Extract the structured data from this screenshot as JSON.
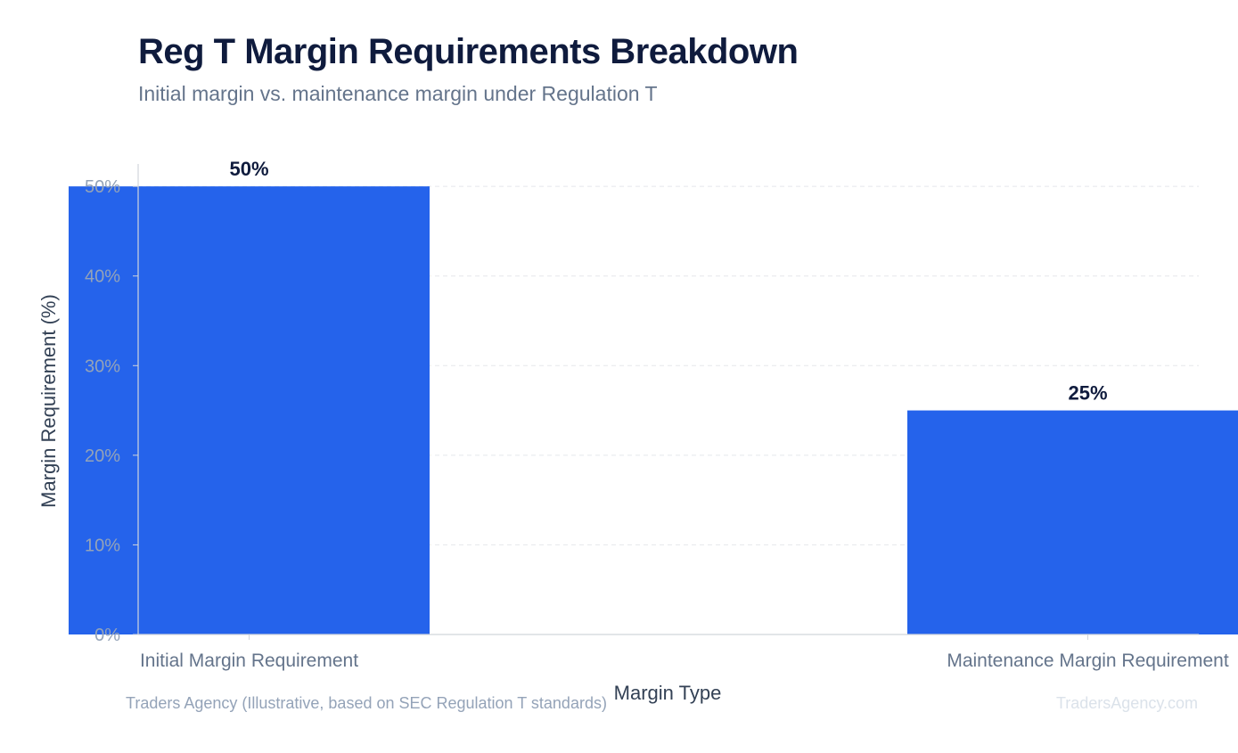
{
  "header": {
    "title": "Reg T Margin Requirements Breakdown",
    "subtitle": "Initial margin vs. maintenance margin under Regulation T"
  },
  "footer": {
    "source": "Traders Agency (Illustrative, based on SEC Regulation T standards)",
    "watermark": "TradersAgency.com"
  },
  "colors": {
    "bar": "#2563eb",
    "title": "#0f1b3d",
    "axis_text": "#94a3b8",
    "label_text": "#64748b"
  },
  "chart_data": {
    "type": "bar",
    "title": "Reg T Margin Requirements Breakdown",
    "subtitle": "Initial margin vs. maintenance margin under Regulation T",
    "categories": [
      "Initial Margin Requirement",
      "Maintenance Margin Requirement"
    ],
    "values": [
      50,
      25
    ],
    "value_labels": [
      "50%",
      "25%"
    ],
    "xlabel": "Margin Type",
    "ylabel": "Margin Requirement (%)",
    "ylim": [
      0,
      52.5
    ],
    "yticks": [
      0,
      10,
      20,
      30,
      40,
      50
    ],
    "ytick_labels": [
      "0%",
      "10%",
      "20%",
      "30%",
      "40%",
      "50%"
    ],
    "grid": true
  }
}
